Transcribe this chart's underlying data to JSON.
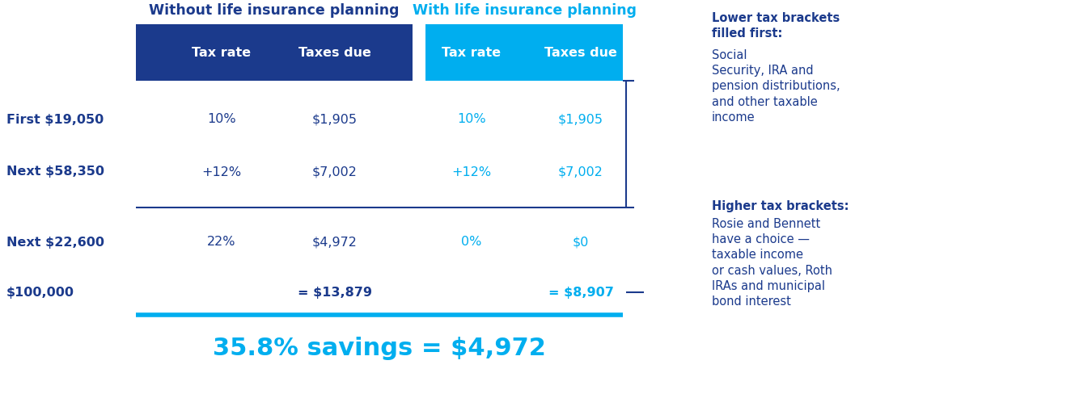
{
  "title_without": "Without life insurance planning",
  "title_with": "With life insurance planning",
  "dark_blue": "#1b3a8c",
  "cyan_blue": "#00aeef",
  "row_labels": [
    "First $19,050",
    "Next $58,350",
    "Next $22,600",
    "$100,000"
  ],
  "col_without_rate": [
    "10%",
    "+12%",
    "22%",
    ""
  ],
  "col_without_taxes": [
    "$1,905",
    "$7,002",
    "$4,972",
    "= $13,879"
  ],
  "col_with_rate": [
    "10%",
    "+12%",
    "0%",
    ""
  ],
  "col_with_taxes": [
    "$1,905",
    "$7,002",
    "$0",
    "= $8,907"
  ],
  "savings_text": "35.8% savings = $4,972",
  "note_lower_bold": "Lower tax brackets\nfilled first:",
  "note_lower_rest": " Social\nSecurity, IRA and\npension distributions,\nand other taxable\nincome",
  "note_higher_bold": "Higher tax brackets:",
  "note_higher_rest": "Rosie and Bennett\nhave a choice —\ntaxable income\nor cash values, Roth\nIRAs and municipal\nbond interest",
  "fig_width": 13.5,
  "fig_height": 4.88,
  "dpi": 100
}
